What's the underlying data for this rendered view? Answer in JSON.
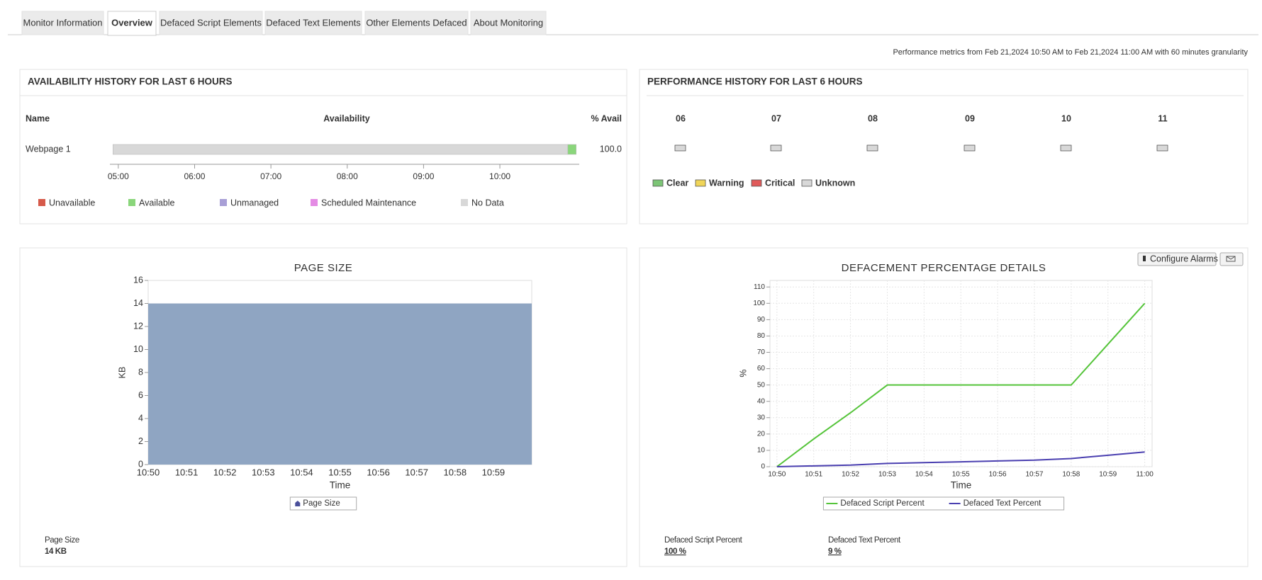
{
  "tabs": [
    "Monitor Information",
    "Overview",
    "Defaced Script Elements",
    "Defaced Text Elements",
    "Other Elements Defaced",
    "About Monitoring"
  ],
  "active_tab": 1,
  "performance_note": "Performance metrics from Feb 21,2024 10:50 AM to Feb 21,2024 11:00 AM with 60 minutes granularity",
  "availability": {
    "title": "AVAILABILITY HISTORY FOR LAST 6 HOURS",
    "columns": [
      "Name",
      "Availability",
      "% Avail"
    ],
    "rows": [
      {
        "name": "Webpage 1",
        "percent": "100.0",
        "segments": [
          {
            "start": 4.93,
            "end": 10.89,
            "color": "#d8d8d8"
          },
          {
            "start": 10.89,
            "end": 11.0,
            "color": "#8ad67b"
          }
        ]
      }
    ],
    "xlim": [
      4.89,
      11.04
    ],
    "xticks": [
      {
        "value": 5,
        "label": "05:00"
      },
      {
        "value": 6,
        "label": "06:00"
      },
      {
        "value": 7,
        "label": "07:00"
      },
      {
        "value": 8,
        "label": "08:00"
      },
      {
        "value": 9,
        "label": "09:00"
      },
      {
        "value": 10,
        "label": "10:00"
      }
    ],
    "legend": [
      {
        "name": "Unavailable",
        "color": "#d65a4a"
      },
      {
        "name": "Available",
        "color": "#8ad67b"
      },
      {
        "name": "Unmanaged",
        "color": "#a89fd6"
      },
      {
        "name": "Scheduled Maintenance",
        "color": "#e48be4"
      },
      {
        "name": "No Data",
        "color": "#d8d8d8"
      }
    ]
  },
  "performance": {
    "title": "PERFORMANCE HISTORY FOR LAST 6 HOURS",
    "hours": [
      "06",
      "07",
      "08",
      "09",
      "10",
      "11"
    ],
    "status_color": "#d8d8d8",
    "legend": [
      {
        "name": "Clear",
        "color": "#7cc576"
      },
      {
        "name": "Warning",
        "color": "#f0d558"
      },
      {
        "name": "Critical",
        "color": "#e05a5a"
      },
      {
        "name": "Unknown",
        "color": "#d8d8d8"
      }
    ]
  },
  "chart_data": [
    {
      "type": "area",
      "title": "PAGE SIZE",
      "x_label": "Time",
      "y_label": "KB",
      "categories": [
        "10:50",
        "10:51",
        "10:52",
        "10:53",
        "10:54",
        "10:55",
        "10:56",
        "10:57",
        "10:58",
        "10:59",
        null
      ],
      "series": [
        {
          "name": "Page Size",
          "color": "#8fa5c2",
          "values": [
            14,
            14,
            14,
            14,
            14,
            14,
            14,
            14,
            14,
            14,
            14
          ]
        }
      ],
      "ylim": [
        0,
        16
      ],
      "yticks": [
        0,
        2,
        4,
        6,
        8,
        10,
        12,
        14,
        16
      ],
      "grid": false
    },
    {
      "type": "line",
      "title": "DEFACEMENT PERCENTAGE DETAILS",
      "x_label": "Time",
      "y_label": "%",
      "categories": [
        "10:50",
        "10:51",
        "10:52",
        "10:53",
        "10:54",
        "10:55",
        "10:56",
        "10:57",
        "10:58",
        "10:59",
        "11:00"
      ],
      "series": [
        {
          "name": "Defaced Script Percent",
          "color": "#55c43a",
          "values": [
            0,
            17,
            33,
            50,
            50,
            50,
            50,
            50,
            50,
            75,
            100
          ]
        },
        {
          "name": "Defaced Text Percent",
          "color": "#4a3fb0",
          "values": [
            0,
            0.5,
            1,
            2,
            2.5,
            3,
            3.5,
            4,
            5,
            7,
            9
          ]
        }
      ],
      "ylim": [
        0,
        114
      ],
      "yticks": [
        0,
        10,
        20,
        30,
        40,
        50,
        60,
        70,
        80,
        90,
        100,
        110
      ],
      "grid": true
    }
  ],
  "buttons": [
    "Configure Alarms"
  ],
  "summary": [
    [
      {
        "label": "Page Size",
        "value": "14 KB"
      }
    ],
    [
      {
        "label": "Defaced Script Percent",
        "value": "100 %"
      },
      {
        "label": "Defaced Text Percent",
        "value": "9 %"
      }
    ]
  ]
}
